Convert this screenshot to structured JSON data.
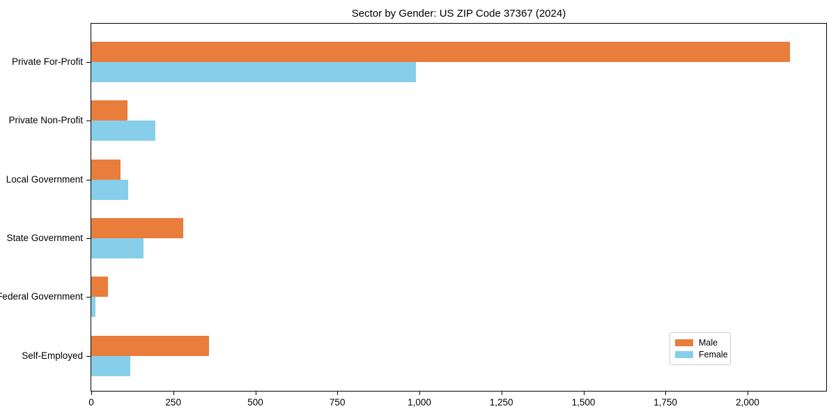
{
  "title": "Sector by Gender: US ZIP Code 37367 (2024)",
  "chart_data": {
    "type": "bar",
    "orientation": "horizontal",
    "title": "Sector by Gender: US ZIP Code 37367 (2024)",
    "xlabel": "",
    "ylabel": "",
    "categories": [
      "Private For-Profit",
      "Private Non-Profit",
      "Local Government",
      "State Government",
      "Federal Government",
      "Self-Employed"
    ],
    "series": [
      {
        "name": "Male",
        "color": "#E87D3C",
        "values": [
          2130,
          110,
          90,
          280,
          50,
          358
        ]
      },
      {
        "name": "Female",
        "color": "#87CEEB",
        "values": [
          990,
          195,
          112,
          160,
          12,
          119
        ]
      }
    ],
    "xlim": [
      0,
      2240
    ],
    "xticks": [
      0,
      250,
      500,
      750,
      1000,
      1250,
      1500,
      1750,
      2000
    ],
    "xtick_labels": [
      "0",
      "250",
      "500",
      "750",
      "1,000",
      "1,250",
      "1,500",
      "1,750",
      "2,000"
    ],
    "grid": false,
    "legend": {
      "position": "lower right",
      "entries": [
        {
          "label": "Male",
          "color": "#E87D3C"
        },
        {
          "label": "Female",
          "color": "#87CEEB"
        }
      ]
    }
  }
}
